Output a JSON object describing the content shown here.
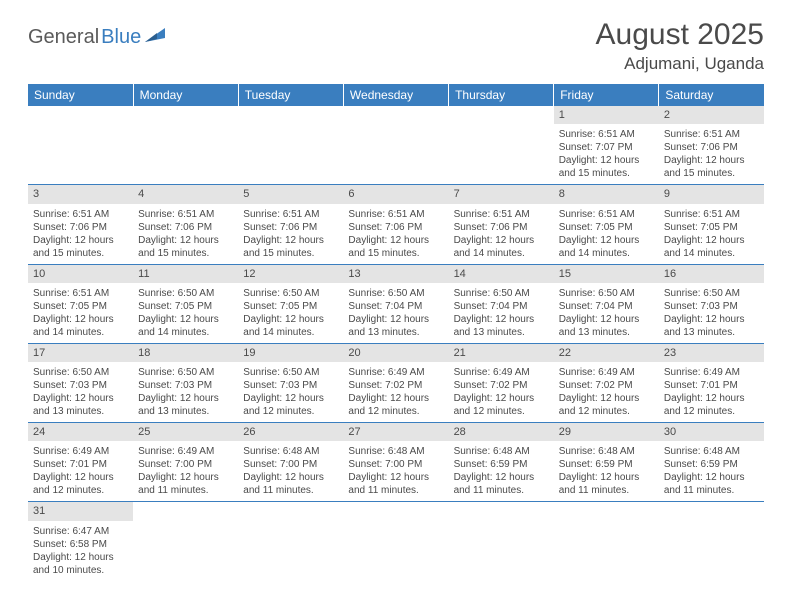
{
  "logo": {
    "part1": "General",
    "part2": "Blue"
  },
  "title": "August 2025",
  "location": "Adjumani, Uganda",
  "colors": {
    "header_bg": "#3a7ebf",
    "header_text": "#ffffff",
    "daynum_bg": "#e4e4e4",
    "border": "#3a7ebf",
    "text": "#4a4a4a"
  },
  "weekdays": [
    "Sunday",
    "Monday",
    "Tuesday",
    "Wednesday",
    "Thursday",
    "Friday",
    "Saturday"
  ],
  "weeks": [
    [
      null,
      null,
      null,
      null,
      null,
      {
        "day": "1",
        "sunrise": "Sunrise: 6:51 AM",
        "sunset": "Sunset: 7:07 PM",
        "daylight1": "Daylight: 12 hours",
        "daylight2": "and 15 minutes."
      },
      {
        "day": "2",
        "sunrise": "Sunrise: 6:51 AM",
        "sunset": "Sunset: 7:06 PM",
        "daylight1": "Daylight: 12 hours",
        "daylight2": "and 15 minutes."
      }
    ],
    [
      {
        "day": "3",
        "sunrise": "Sunrise: 6:51 AM",
        "sunset": "Sunset: 7:06 PM",
        "daylight1": "Daylight: 12 hours",
        "daylight2": "and 15 minutes."
      },
      {
        "day": "4",
        "sunrise": "Sunrise: 6:51 AM",
        "sunset": "Sunset: 7:06 PM",
        "daylight1": "Daylight: 12 hours",
        "daylight2": "and 15 minutes."
      },
      {
        "day": "5",
        "sunrise": "Sunrise: 6:51 AM",
        "sunset": "Sunset: 7:06 PM",
        "daylight1": "Daylight: 12 hours",
        "daylight2": "and 15 minutes."
      },
      {
        "day": "6",
        "sunrise": "Sunrise: 6:51 AM",
        "sunset": "Sunset: 7:06 PM",
        "daylight1": "Daylight: 12 hours",
        "daylight2": "and 15 minutes."
      },
      {
        "day": "7",
        "sunrise": "Sunrise: 6:51 AM",
        "sunset": "Sunset: 7:06 PM",
        "daylight1": "Daylight: 12 hours",
        "daylight2": "and 14 minutes."
      },
      {
        "day": "8",
        "sunrise": "Sunrise: 6:51 AM",
        "sunset": "Sunset: 7:05 PM",
        "daylight1": "Daylight: 12 hours",
        "daylight2": "and 14 minutes."
      },
      {
        "day": "9",
        "sunrise": "Sunrise: 6:51 AM",
        "sunset": "Sunset: 7:05 PM",
        "daylight1": "Daylight: 12 hours",
        "daylight2": "and 14 minutes."
      }
    ],
    [
      {
        "day": "10",
        "sunrise": "Sunrise: 6:51 AM",
        "sunset": "Sunset: 7:05 PM",
        "daylight1": "Daylight: 12 hours",
        "daylight2": "and 14 minutes."
      },
      {
        "day": "11",
        "sunrise": "Sunrise: 6:50 AM",
        "sunset": "Sunset: 7:05 PM",
        "daylight1": "Daylight: 12 hours",
        "daylight2": "and 14 minutes."
      },
      {
        "day": "12",
        "sunrise": "Sunrise: 6:50 AM",
        "sunset": "Sunset: 7:05 PM",
        "daylight1": "Daylight: 12 hours",
        "daylight2": "and 14 minutes."
      },
      {
        "day": "13",
        "sunrise": "Sunrise: 6:50 AM",
        "sunset": "Sunset: 7:04 PM",
        "daylight1": "Daylight: 12 hours",
        "daylight2": "and 13 minutes."
      },
      {
        "day": "14",
        "sunrise": "Sunrise: 6:50 AM",
        "sunset": "Sunset: 7:04 PM",
        "daylight1": "Daylight: 12 hours",
        "daylight2": "and 13 minutes."
      },
      {
        "day": "15",
        "sunrise": "Sunrise: 6:50 AM",
        "sunset": "Sunset: 7:04 PM",
        "daylight1": "Daylight: 12 hours",
        "daylight2": "and 13 minutes."
      },
      {
        "day": "16",
        "sunrise": "Sunrise: 6:50 AM",
        "sunset": "Sunset: 7:03 PM",
        "daylight1": "Daylight: 12 hours",
        "daylight2": "and 13 minutes."
      }
    ],
    [
      {
        "day": "17",
        "sunrise": "Sunrise: 6:50 AM",
        "sunset": "Sunset: 7:03 PM",
        "daylight1": "Daylight: 12 hours",
        "daylight2": "and 13 minutes."
      },
      {
        "day": "18",
        "sunrise": "Sunrise: 6:50 AM",
        "sunset": "Sunset: 7:03 PM",
        "daylight1": "Daylight: 12 hours",
        "daylight2": "and 13 minutes."
      },
      {
        "day": "19",
        "sunrise": "Sunrise: 6:50 AM",
        "sunset": "Sunset: 7:03 PM",
        "daylight1": "Daylight: 12 hours",
        "daylight2": "and 12 minutes."
      },
      {
        "day": "20",
        "sunrise": "Sunrise: 6:49 AM",
        "sunset": "Sunset: 7:02 PM",
        "daylight1": "Daylight: 12 hours",
        "daylight2": "and 12 minutes."
      },
      {
        "day": "21",
        "sunrise": "Sunrise: 6:49 AM",
        "sunset": "Sunset: 7:02 PM",
        "daylight1": "Daylight: 12 hours",
        "daylight2": "and 12 minutes."
      },
      {
        "day": "22",
        "sunrise": "Sunrise: 6:49 AM",
        "sunset": "Sunset: 7:02 PM",
        "daylight1": "Daylight: 12 hours",
        "daylight2": "and 12 minutes."
      },
      {
        "day": "23",
        "sunrise": "Sunrise: 6:49 AM",
        "sunset": "Sunset: 7:01 PM",
        "daylight1": "Daylight: 12 hours",
        "daylight2": "and 12 minutes."
      }
    ],
    [
      {
        "day": "24",
        "sunrise": "Sunrise: 6:49 AM",
        "sunset": "Sunset: 7:01 PM",
        "daylight1": "Daylight: 12 hours",
        "daylight2": "and 12 minutes."
      },
      {
        "day": "25",
        "sunrise": "Sunrise: 6:49 AM",
        "sunset": "Sunset: 7:00 PM",
        "daylight1": "Daylight: 12 hours",
        "daylight2": "and 11 minutes."
      },
      {
        "day": "26",
        "sunrise": "Sunrise: 6:48 AM",
        "sunset": "Sunset: 7:00 PM",
        "daylight1": "Daylight: 12 hours",
        "daylight2": "and 11 minutes."
      },
      {
        "day": "27",
        "sunrise": "Sunrise: 6:48 AM",
        "sunset": "Sunset: 7:00 PM",
        "daylight1": "Daylight: 12 hours",
        "daylight2": "and 11 minutes."
      },
      {
        "day": "28",
        "sunrise": "Sunrise: 6:48 AM",
        "sunset": "Sunset: 6:59 PM",
        "daylight1": "Daylight: 12 hours",
        "daylight2": "and 11 minutes."
      },
      {
        "day": "29",
        "sunrise": "Sunrise: 6:48 AM",
        "sunset": "Sunset: 6:59 PM",
        "daylight1": "Daylight: 12 hours",
        "daylight2": "and 11 minutes."
      },
      {
        "day": "30",
        "sunrise": "Sunrise: 6:48 AM",
        "sunset": "Sunset: 6:59 PM",
        "daylight1": "Daylight: 12 hours",
        "daylight2": "and 11 minutes."
      }
    ],
    [
      {
        "day": "31",
        "sunrise": "Sunrise: 6:47 AM",
        "sunset": "Sunset: 6:58 PM",
        "daylight1": "Daylight: 12 hours",
        "daylight2": "and 10 minutes."
      },
      null,
      null,
      null,
      null,
      null,
      null
    ]
  ]
}
